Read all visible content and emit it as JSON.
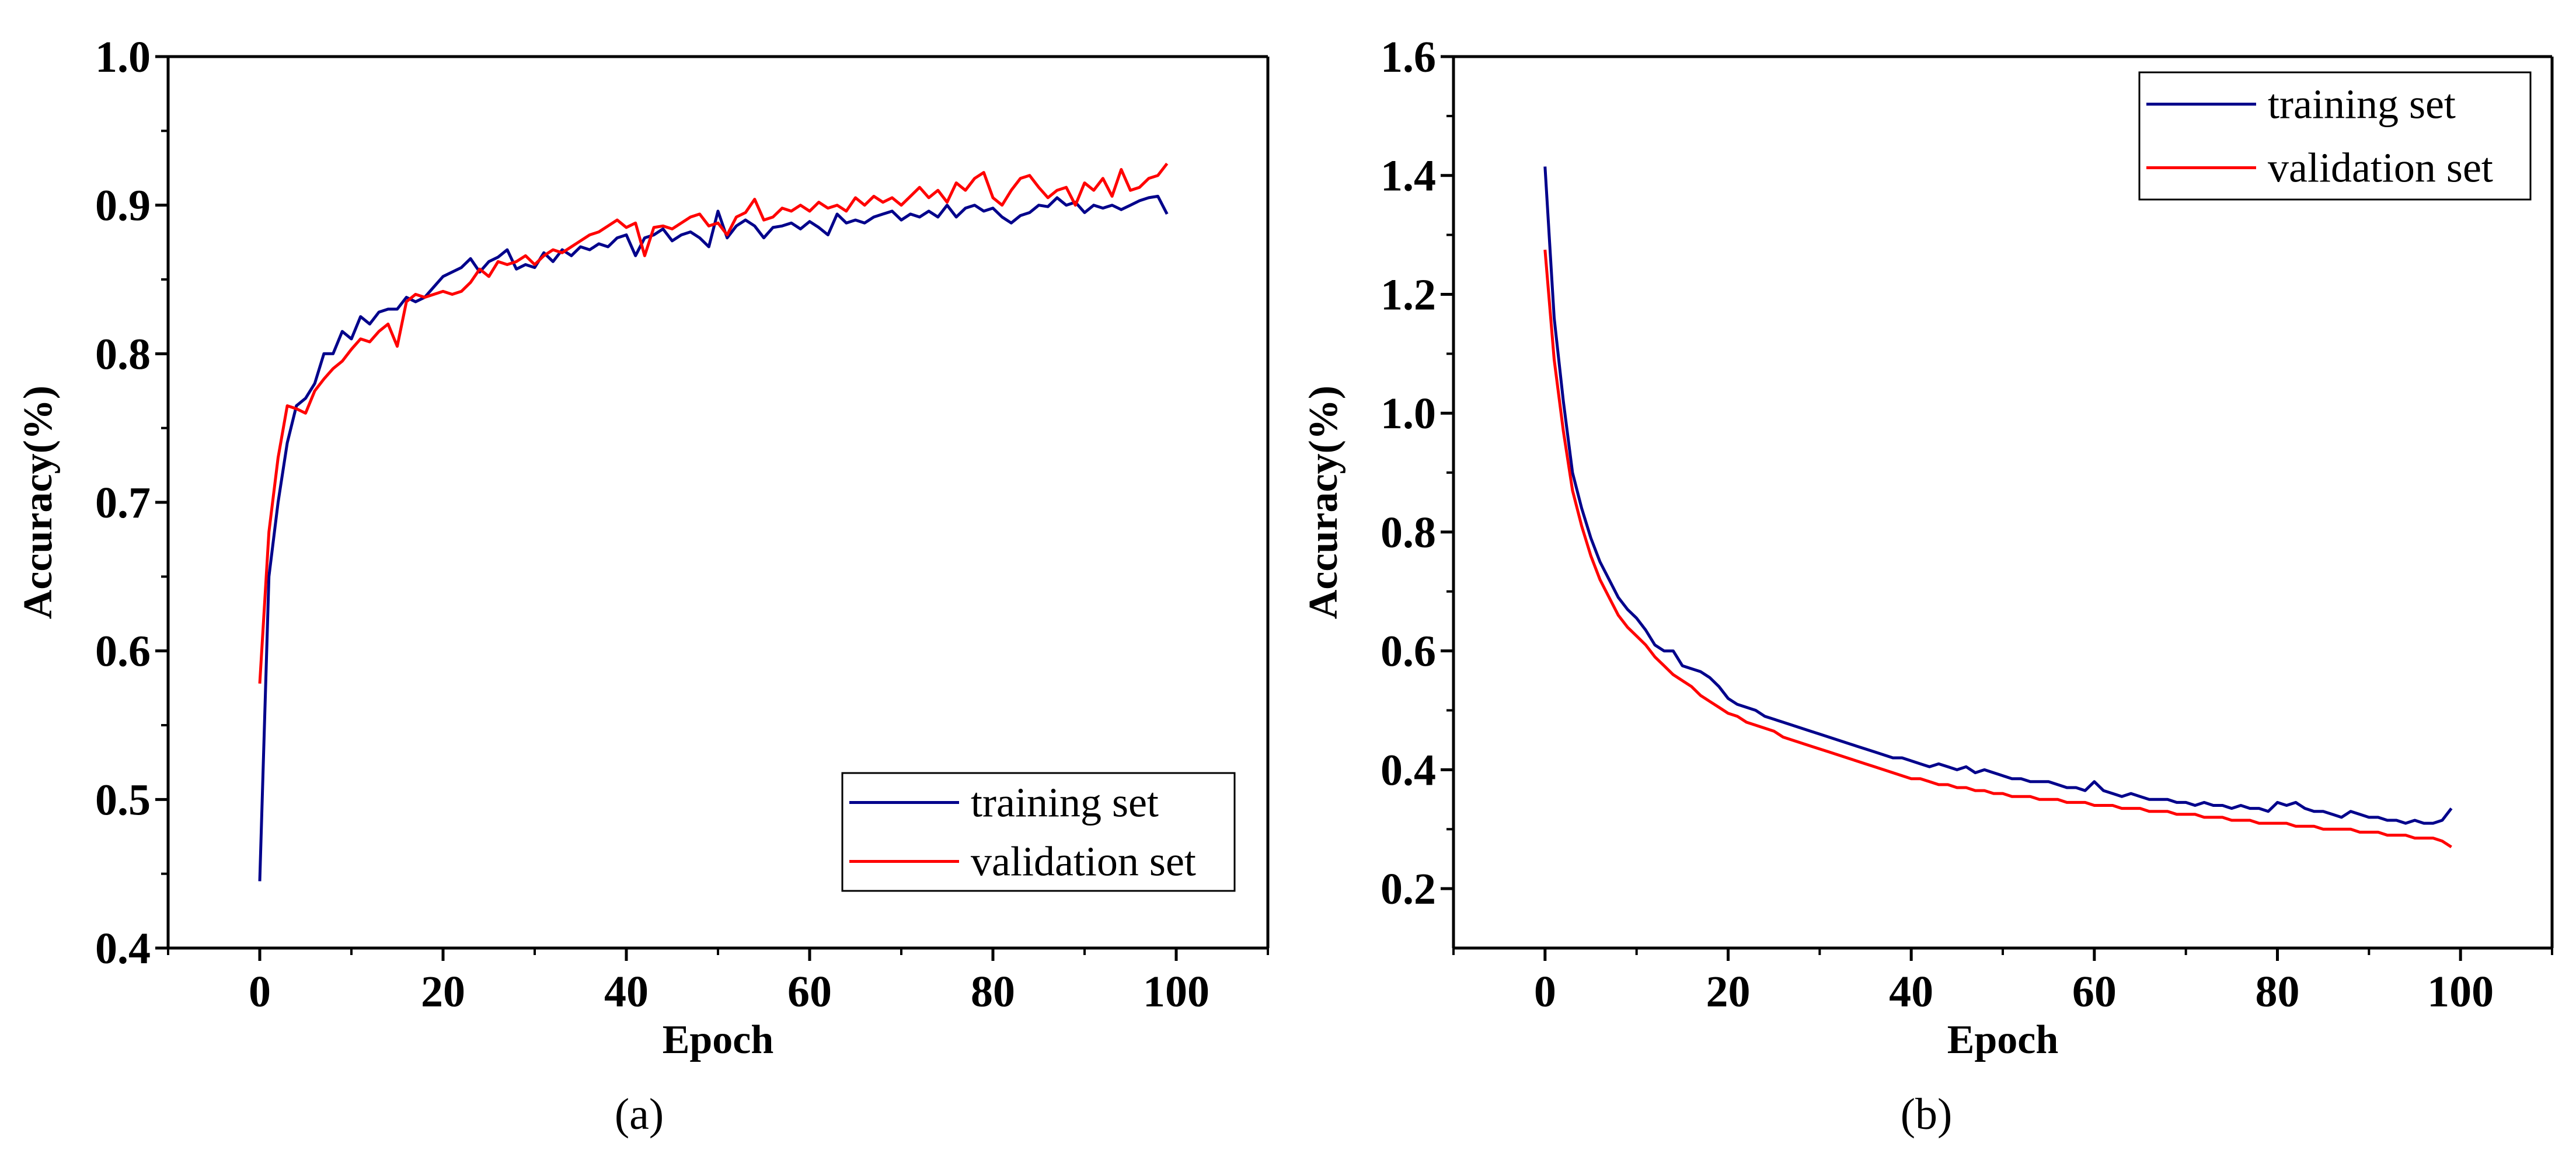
{
  "chart_data": [
    {
      "type": "line",
      "caption": "(a)",
      "title": "",
      "xlabel": "Epoch",
      "ylabel": "Accuracy(%)",
      "xlim": [
        -10,
        110
      ],
      "ylim": [
        0.4,
        1.0
      ],
      "xticks": [
        0,
        20,
        40,
        60,
        80,
        100
      ],
      "yticks": [
        0.4,
        0.5,
        0.6,
        0.7,
        0.8,
        0.9,
        1.0
      ],
      "xtick_labels": [
        "0",
        "20",
        "40",
        "60",
        "80",
        "100"
      ],
      "ytick_labels": [
        "0.4",
        "0.5",
        "0.6",
        "0.7",
        "0.8",
        "0.9",
        "1.0"
      ],
      "legend_position": "bottom-right",
      "series": [
        {
          "name": "training set",
          "color": "#00008b",
          "values": [
            0.445,
            0.65,
            0.7,
            0.74,
            0.765,
            0.77,
            0.78,
            0.8,
            0.8,
            0.815,
            0.81,
            0.825,
            0.82,
            0.828,
            0.83,
            0.83,
            0.838,
            0.835,
            0.838,
            0.845,
            0.852,
            0.855,
            0.858,
            0.864,
            0.855,
            0.862,
            0.865,
            0.87,
            0.857,
            0.86,
            0.858,
            0.868,
            0.862,
            0.87,
            0.866,
            0.872,
            0.87,
            0.874,
            0.872,
            0.878,
            0.88,
            0.866,
            0.878,
            0.88,
            0.884,
            0.876,
            0.88,
            0.882,
            0.878,
            0.872,
            0.896,
            0.878,
            0.886,
            0.89,
            0.886,
            0.878,
            0.885,
            0.886,
            0.888,
            0.884,
            0.889,
            0.885,
            0.88,
            0.894,
            0.888,
            0.89,
            0.888,
            0.892,
            0.894,
            0.896,
            0.89,
            0.894,
            0.892,
            0.896,
            0.892,
            0.9,
            0.892,
            0.898,
            0.9,
            0.896,
            0.898,
            0.892,
            0.888,
            0.893,
            0.895,
            0.9,
            0.899,
            0.905,
            0.9,
            0.902,
            0.895,
            0.9,
            0.898,
            0.9,
            0.897,
            0.9,
            0.903,
            0.905,
            0.906,
            0.894
          ]
        },
        {
          "name": "validation set",
          "color": "#ff0000",
          "values": [
            0.578,
            0.68,
            0.73,
            0.765,
            0.763,
            0.76,
            0.775,
            0.783,
            0.79,
            0.795,
            0.803,
            0.81,
            0.808,
            0.815,
            0.82,
            0.805,
            0.835,
            0.84,
            0.838,
            0.84,
            0.842,
            0.84,
            0.842,
            0.848,
            0.857,
            0.852,
            0.862,
            0.86,
            0.862,
            0.866,
            0.86,
            0.866,
            0.87,
            0.868,
            0.872,
            0.876,
            0.88,
            0.882,
            0.886,
            0.89,
            0.885,
            0.888,
            0.866,
            0.885,
            0.886,
            0.884,
            0.888,
            0.892,
            0.894,
            0.886,
            0.888,
            0.88,
            0.892,
            0.895,
            0.904,
            0.89,
            0.892,
            0.898,
            0.896,
            0.9,
            0.896,
            0.902,
            0.898,
            0.9,
            0.896,
            0.905,
            0.9,
            0.906,
            0.902,
            0.905,
            0.9,
            0.906,
            0.912,
            0.905,
            0.91,
            0.902,
            0.915,
            0.91,
            0.918,
            0.922,
            0.905,
            0.9,
            0.91,
            0.918,
            0.92,
            0.912,
            0.905,
            0.91,
            0.912,
            0.9,
            0.915,
            0.91,
            0.918,
            0.906,
            0.924,
            0.91,
            0.912,
            0.918,
            0.92,
            0.928
          ]
        }
      ]
    },
    {
      "type": "line",
      "caption": "(b)",
      "title": "",
      "xlabel": "Epoch",
      "ylabel": "Accuracy(%)",
      "xlim": [
        -10,
        110
      ],
      "ylim": [
        0.1,
        1.6
      ],
      "xticks": [
        0,
        20,
        40,
        60,
        80,
        100
      ],
      "yticks": [
        0.2,
        0.4,
        0.6,
        0.8,
        1.0,
        1.2,
        1.4,
        1.6
      ],
      "xtick_labels": [
        "0",
        "20",
        "40",
        "60",
        "80",
        "100"
      ],
      "ytick_labels": [
        "0.2",
        "0.4",
        "0.6",
        "0.8",
        "1.0",
        "1.2",
        "1.4",
        "1.6"
      ],
      "legend_position": "top-right",
      "series": [
        {
          "name": "training set",
          "color": "#00008b",
          "values": [
            1.415,
            1.16,
            1.02,
            0.9,
            0.84,
            0.79,
            0.75,
            0.72,
            0.69,
            0.67,
            0.655,
            0.635,
            0.61,
            0.6,
            0.6,
            0.575,
            0.57,
            0.565,
            0.555,
            0.54,
            0.52,
            0.51,
            0.505,
            0.5,
            0.49,
            0.485,
            0.48,
            0.475,
            0.47,
            0.465,
            0.46,
            0.455,
            0.45,
            0.445,
            0.44,
            0.435,
            0.43,
            0.425,
            0.42,
            0.42,
            0.415,
            0.41,
            0.405,
            0.41,
            0.405,
            0.4,
            0.405,
            0.395,
            0.4,
            0.395,
            0.39,
            0.385,
            0.385,
            0.38,
            0.38,
            0.38,
            0.375,
            0.37,
            0.37,
            0.365,
            0.38,
            0.365,
            0.36,
            0.355,
            0.36,
            0.355,
            0.35,
            0.35,
            0.35,
            0.345,
            0.345,
            0.34,
            0.345,
            0.34,
            0.34,
            0.335,
            0.34,
            0.335,
            0.335,
            0.33,
            0.345,
            0.34,
            0.345,
            0.335,
            0.33,
            0.33,
            0.325,
            0.32,
            0.33,
            0.325,
            0.32,
            0.32,
            0.315,
            0.315,
            0.31,
            0.315,
            0.31,
            0.31,
            0.315,
            0.335
          ]
        },
        {
          "name": "validation set",
          "color": "#ff0000",
          "values": [
            1.275,
            1.09,
            0.97,
            0.87,
            0.81,
            0.76,
            0.72,
            0.69,
            0.66,
            0.64,
            0.625,
            0.61,
            0.59,
            0.575,
            0.56,
            0.55,
            0.54,
            0.525,
            0.515,
            0.505,
            0.495,
            0.49,
            0.48,
            0.475,
            0.47,
            0.465,
            0.455,
            0.45,
            0.445,
            0.44,
            0.435,
            0.43,
            0.425,
            0.42,
            0.415,
            0.41,
            0.405,
            0.4,
            0.395,
            0.39,
            0.385,
            0.385,
            0.38,
            0.375,
            0.375,
            0.37,
            0.37,
            0.365,
            0.365,
            0.36,
            0.36,
            0.355,
            0.355,
            0.355,
            0.35,
            0.35,
            0.35,
            0.345,
            0.345,
            0.345,
            0.34,
            0.34,
            0.34,
            0.335,
            0.335,
            0.335,
            0.33,
            0.33,
            0.33,
            0.325,
            0.325,
            0.325,
            0.32,
            0.32,
            0.32,
            0.315,
            0.315,
            0.315,
            0.31,
            0.31,
            0.31,
            0.31,
            0.305,
            0.305,
            0.305,
            0.3,
            0.3,
            0.3,
            0.3,
            0.295,
            0.295,
            0.295,
            0.29,
            0.29,
            0.29,
            0.285,
            0.285,
            0.285,
            0.28,
            0.27
          ]
        }
      ]
    }
  ]
}
